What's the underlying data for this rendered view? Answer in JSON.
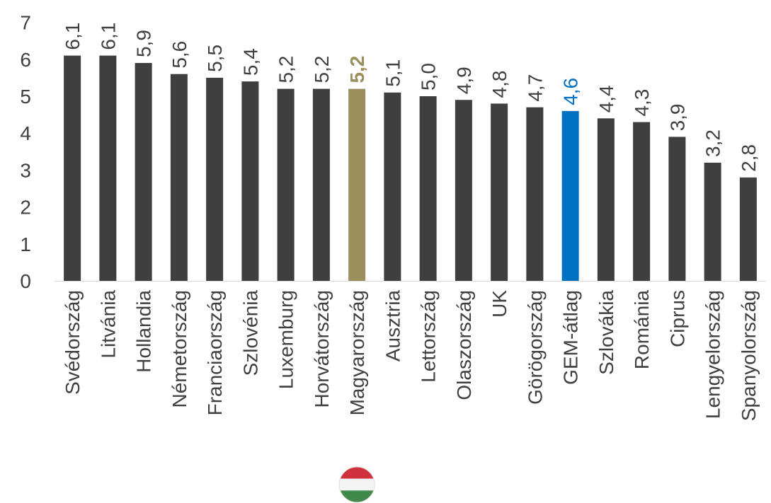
{
  "chart_data": {
    "type": "bar",
    "categories": [
      "Svédország",
      "Litvánia",
      "Hollandia",
      "Németország",
      "Franciaország",
      "Szlovénia",
      "Luxemburg",
      "Horvátország",
      "Magyarország",
      "Ausztria",
      "Lettország",
      "Olaszország",
      "UK",
      "Görögország",
      "GEM-átlag",
      "Szlovákia",
      "Románia",
      "Ciprus",
      "Lengyelország",
      "Spanyolország"
    ],
    "values": [
      6.1,
      6.1,
      5.9,
      5.6,
      5.5,
      5.4,
      5.2,
      5.2,
      5.2,
      5.1,
      5.0,
      4.9,
      4.8,
      4.7,
      4.6,
      4.4,
      4.3,
      3.9,
      3.2,
      2.8
    ],
    "value_labels": [
      "6,1",
      "6,1",
      "5,9",
      "5,6",
      "5,5",
      "5,4",
      "5,2",
      "5,2",
      "5,2",
      "5,1",
      "5,0",
      "4,9",
      "4,8",
      "4,7",
      "4,6",
      "4,4",
      "4,3",
      "3,9",
      "3,2",
      "2,8"
    ],
    "ylim": [
      0,
      7
    ],
    "yticks": [
      "0",
      "1",
      "2",
      "3",
      "4",
      "5",
      "6",
      "7"
    ],
    "grid": false,
    "legend": "none",
    "colors": {
      "default": "#3f3f3f",
      "highlight_hu": "#9b8f5e",
      "highlight_gem": "#0070c0",
      "hu_index": 8,
      "gem_index": 14
    },
    "flag_icon": "hungary-flag-icon"
  }
}
